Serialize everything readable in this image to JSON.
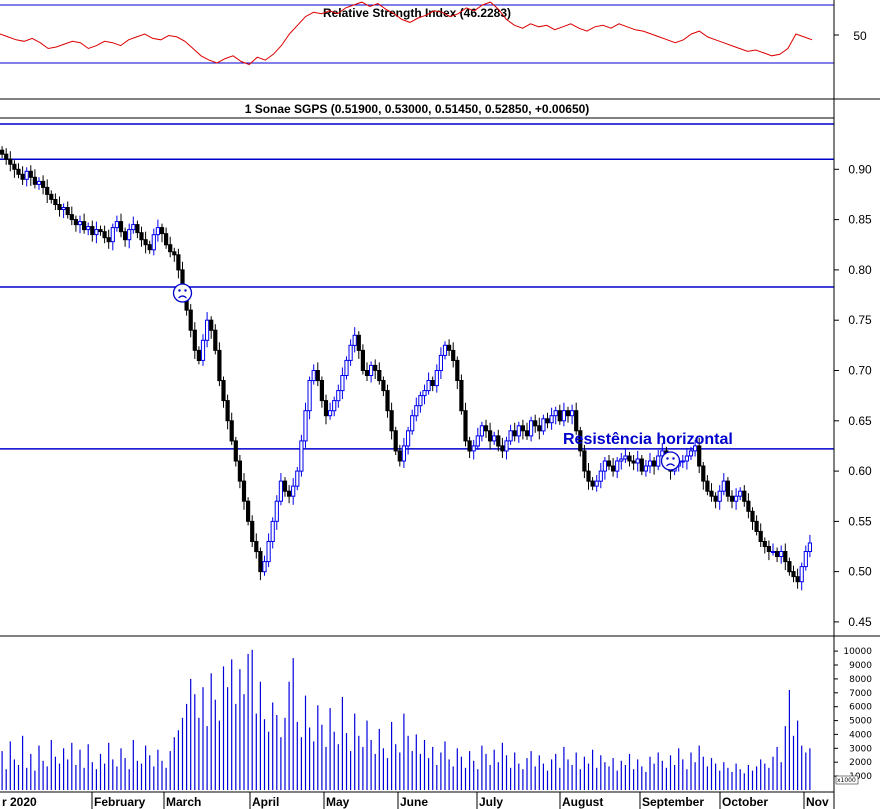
{
  "colors": {
    "rsi_line": "#dd0000",
    "up_bar": "#0000ee",
    "down_bar": "#000000",
    "hline": "#0000cc",
    "volume": "#0000dd",
    "frame": "#000000"
  },
  "chart_data": [
    {
      "type": "line",
      "panel": "rsi",
      "title": "Relative Strength Index (46.2283)",
      "y_ticks": [
        "50"
      ],
      "ylim": [
        20,
        80
      ],
      "reference_lines": [
        70,
        30
      ],
      "series": [
        {
          "values": [
            50,
            48,
            46,
            45,
            47,
            44,
            40,
            41,
            43,
            45,
            44,
            40,
            42,
            45,
            44,
            42,
            46,
            48,
            50,
            47,
            46,
            49,
            48,
            45,
            40,
            35,
            32,
            30,
            33,
            35,
            31,
            29,
            34,
            32,
            36,
            42,
            50,
            56,
            62,
            65,
            64,
            66,
            64,
            68,
            70,
            72,
            69,
            71,
            67,
            64,
            60,
            58,
            61,
            63,
            66,
            65,
            62,
            64,
            68,
            66,
            70,
            72,
            67,
            60,
            56,
            54,
            57,
            55,
            56,
            53,
            55,
            57,
            54,
            52,
            55,
            56,
            54,
            57,
            55,
            53,
            52,
            50,
            48,
            46,
            44,
            46,
            50,
            52,
            48,
            46,
            44,
            42,
            40,
            38,
            39,
            37,
            35,
            36,
            40,
            50,
            48,
            46
          ]
        }
      ]
    },
    {
      "type": "candlestick",
      "panel": "price",
      "title": "1 Sonae SGPS (0.51900, 0.53000, 0.51450, 0.52850, +0.00650)",
      "y_ticks": [
        "0.45",
        "0.50",
        "0.55",
        "0.60",
        "0.65",
        "0.70",
        "0.75",
        "0.80",
        "0.85",
        "0.90"
      ],
      "ylim": [
        0.44,
        0.95
      ],
      "horizontal_lines": [
        0.945,
        0.91,
        0.783,
        0.622
      ],
      "annotation": "Resistência horizontal",
      "markers": [
        {
          "x": 44,
          "y": 0.777
        },
        {
          "x": 163,
          "y": 0.61
        }
      ],
      "close": [
        0.915,
        0.91,
        0.905,
        0.9,
        0.895,
        0.89,
        0.898,
        0.892,
        0.885,
        0.888,
        0.882,
        0.875,
        0.87,
        0.865,
        0.86,
        0.862,
        0.855,
        0.85,
        0.845,
        0.848,
        0.84,
        0.843,
        0.835,
        0.84,
        0.838,
        0.832,
        0.828,
        0.842,
        0.848,
        0.838,
        0.83,
        0.84,
        0.845,
        0.837,
        0.83,
        0.825,
        0.82,
        0.835,
        0.842,
        0.836,
        0.825,
        0.818,
        0.815,
        0.8,
        0.78,
        0.76,
        0.74,
        0.72,
        0.71,
        0.73,
        0.75,
        0.74,
        0.72,
        0.69,
        0.67,
        0.65,
        0.63,
        0.61,
        0.59,
        0.57,
        0.55,
        0.53,
        0.52,
        0.5,
        0.51,
        0.53,
        0.55,
        0.57,
        0.59,
        0.58,
        0.575,
        0.585,
        0.6,
        0.63,
        0.66,
        0.69,
        0.7,
        0.69,
        0.67,
        0.655,
        0.66,
        0.67,
        0.68,
        0.695,
        0.71,
        0.725,
        0.735,
        0.72,
        0.7,
        0.695,
        0.705,
        0.7,
        0.69,
        0.68,
        0.66,
        0.64,
        0.62,
        0.61,
        0.625,
        0.64,
        0.655,
        0.665,
        0.675,
        0.68,
        0.69,
        0.685,
        0.7,
        0.715,
        0.725,
        0.72,
        0.71,
        0.69,
        0.66,
        0.63,
        0.62,
        0.625,
        0.635,
        0.645,
        0.64,
        0.63,
        0.635,
        0.625,
        0.62,
        0.63,
        0.64,
        0.635,
        0.645,
        0.64,
        0.635,
        0.65,
        0.645,
        0.64,
        0.652,
        0.648,
        0.655,
        0.66,
        0.65,
        0.66,
        0.655,
        0.66,
        0.64,
        0.62,
        0.6,
        0.59,
        0.585,
        0.59,
        0.6,
        0.61,
        0.605,
        0.6,
        0.61,
        0.612,
        0.615,
        0.61,
        0.608,
        0.612,
        0.6,
        0.605,
        0.61,
        0.605,
        0.615,
        0.62,
        0.61,
        0.6,
        0.605,
        0.61,
        0.61,
        0.615,
        0.62,
        0.625,
        0.605,
        0.59,
        0.58,
        0.575,
        0.57,
        0.58,
        0.59,
        0.575,
        0.57,
        0.575,
        0.58,
        0.57,
        0.56,
        0.55,
        0.54,
        0.53,
        0.525,
        0.52,
        0.52,
        0.515,
        0.52,
        0.51,
        0.5,
        0.495,
        0.49,
        0.505,
        0.52,
        0.5285
      ]
    },
    {
      "type": "bar",
      "panel": "volume",
      "y_ticks": [
        "1000",
        "2000",
        "3000",
        "4000",
        "5000",
        "6000",
        "7000",
        "8000",
        "9000",
        "10000"
      ],
      "unit_label": "x1000",
      "ylim": [
        0,
        10800
      ],
      "x_ticks": [
        "r 2020",
        "February",
        "March",
        "April",
        "May",
        "June",
        "July",
        "August",
        "September",
        "October",
        "Nov"
      ],
      "values": [
        2800,
        1500,
        3500,
        2200,
        1800,
        3900,
        1600,
        2600,
        1400,
        3200,
        2100,
        1700,
        3600,
        2400,
        1900,
        3000,
        2200,
        3400,
        1800,
        2900,
        1600,
        3300,
        2000,
        1500,
        2600,
        1900,
        3400,
        2200,
        1700,
        3000,
        2300,
        1500,
        3600,
        2100,
        1900,
        3200,
        2500,
        1700,
        2900,
        2100,
        1600,
        2800,
        3800,
        4300,
        5200,
        6200,
        8000,
        6900,
        5200,
        7400,
        4600,
        8400,
        6500,
        5000,
        8900,
        7400,
        9400,
        6200,
        8700,
        6900,
        9800,
        10100,
        5500,
        7800,
        5100,
        4200,
        6300,
        5400,
        3800,
        5200,
        7800,
        9500,
        4900,
        3800,
        6800,
        4500,
        3500,
        6100,
        4700,
        3100,
        5900,
        4200,
        3300,
        6700,
        4100,
        2800,
        5500,
        3900,
        3100,
        5000,
        3600,
        2600,
        4400,
        3000,
        2300,
        4900,
        3300,
        2700,
        5500,
        3900,
        2800,
        4000,
        2600,
        3600,
        2300,
        3100,
        1800,
        2700,
        3500,
        2200,
        1700,
        3000,
        2400,
        1600,
        2800,
        2100,
        1500,
        3200,
        2600,
        1800,
        2900,
        2000,
        3400,
        2500,
        1600,
        2700,
        1900,
        1500,
        2300,
        2800,
        1700,
        2500,
        1900,
        1400,
        2200,
        2600,
        1600,
        3100,
        2200,
        1800,
        2700,
        1500,
        2400,
        1900,
        2900,
        1600,
        2500,
        2000,
        1700,
        2300,
        1400,
        2100,
        1800,
        2600,
        1500,
        2200,
        1700,
        1300,
        2400,
        1900,
        2700,
        2100,
        1600,
        2500,
        1800,
        3000,
        2200,
        1500,
        2700,
        2000,
        3200,
        2400,
        1700,
        2300,
        1900,
        1400,
        2000,
        1600,
        1300,
        1900,
        1500,
        1200,
        1800,
        1400,
        1700,
        2200,
        1900,
        1600,
        2400,
        3100,
        2000,
        4600,
        7200,
        3900,
        5000,
        3200,
        2700,
        3000
      ]
    }
  ]
}
